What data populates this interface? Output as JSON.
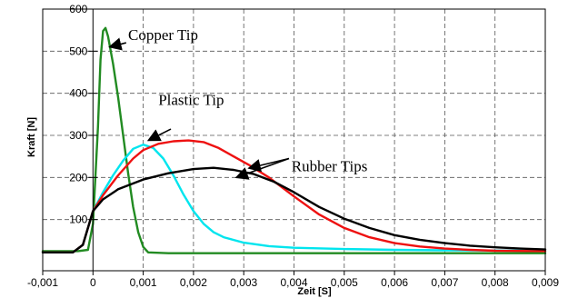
{
  "chart_data": {
    "type": "line",
    "title": "",
    "xlabel": "Zeit [S]",
    "ylabel": "Kraft [N]",
    "xlim": [
      -0.001,
      0.009
    ],
    "ylim": [
      0,
      600
    ],
    "y_axis_position": "x=0",
    "grid": true,
    "grid_style": "dashed",
    "legend": "none",
    "x_ticks": [
      "-0,001",
      "0",
      "0,001",
      "0,002",
      "0,003",
      "0,004",
      "0,005",
      "0,006",
      "0,007",
      "0,008",
      "0,009"
    ],
    "y_ticks": [
      "100",
      "200",
      "300",
      "400",
      "500",
      "600"
    ],
    "series": [
      {
        "color": "#228b22",
        "points": [
          [
            -0.001,
            25
          ],
          [
            -0.0003,
            25
          ],
          [
            -0.0001,
            28
          ],
          [
            0,
            90
          ],
          [
            0.0001,
            320
          ],
          [
            0.00015,
            480
          ],
          [
            0.0002,
            548
          ],
          [
            0.00025,
            555
          ],
          [
            0.0003,
            535
          ],
          [
            0.0004,
            470
          ],
          [
            0.0005,
            390
          ],
          [
            0.0006,
            300
          ],
          [
            0.0007,
            210
          ],
          [
            0.0008,
            130
          ],
          [
            0.0009,
            70
          ],
          [
            0.001,
            35
          ],
          [
            0.0011,
            22
          ],
          [
            0.0015,
            20
          ],
          [
            0.002,
            20
          ],
          [
            0.004,
            20
          ],
          [
            0.006,
            20
          ],
          [
            0.009,
            20
          ]
        ]
      },
      {
        "color": "#00e5ee",
        "points": [
          [
            -0.001,
            22
          ],
          [
            -0.0004,
            22
          ],
          [
            -0.0002,
            40
          ],
          [
            0,
            120
          ],
          [
            0.0002,
            165
          ],
          [
            0.0004,
            205
          ],
          [
            0.0006,
            240
          ],
          [
            0.0008,
            268
          ],
          [
            0.001,
            278
          ],
          [
            0.0012,
            270
          ],
          [
            0.0014,
            245
          ],
          [
            0.0016,
            205
          ],
          [
            0.0018,
            160
          ],
          [
            0.002,
            120
          ],
          [
            0.0022,
            90
          ],
          [
            0.0024,
            70
          ],
          [
            0.0026,
            58
          ],
          [
            0.003,
            45
          ],
          [
            0.0035,
            37
          ],
          [
            0.004,
            33
          ],
          [
            0.005,
            30
          ],
          [
            0.006,
            28
          ],
          [
            0.007,
            27
          ],
          [
            0.009,
            26
          ]
        ]
      },
      {
        "color": "#ee1111",
        "points": [
          [
            -0.001,
            22
          ],
          [
            -0.0004,
            22
          ],
          [
            -0.0002,
            40
          ],
          [
            0,
            120
          ],
          [
            0.0002,
            158
          ],
          [
            0.0005,
            205
          ],
          [
            0.0008,
            245
          ],
          [
            0.001,
            265
          ],
          [
            0.0013,
            280
          ],
          [
            0.0016,
            286
          ],
          [
            0.0019,
            288
          ],
          [
            0.0022,
            284
          ],
          [
            0.0025,
            270
          ],
          [
            0.0028,
            250
          ],
          [
            0.0031,
            230
          ],
          [
            0.0035,
            200
          ],
          [
            0.004,
            155
          ],
          [
            0.0045,
            112
          ],
          [
            0.005,
            80
          ],
          [
            0.0055,
            58
          ],
          [
            0.006,
            44
          ],
          [
            0.0065,
            36
          ],
          [
            0.007,
            31
          ],
          [
            0.0075,
            28
          ],
          [
            0.008,
            26
          ],
          [
            0.009,
            25
          ]
        ]
      },
      {
        "color": "#000000",
        "points": [
          [
            -0.001,
            22
          ],
          [
            -0.0004,
            22
          ],
          [
            -0.0002,
            40
          ],
          [
            0,
            120
          ],
          [
            0.0002,
            148
          ],
          [
            0.0005,
            172
          ],
          [
            0.001,
            195
          ],
          [
            0.0015,
            210
          ],
          [
            0.002,
            220
          ],
          [
            0.0024,
            223
          ],
          [
            0.0028,
            218
          ],
          [
            0.0032,
            208
          ],
          [
            0.0036,
            190
          ],
          [
            0.004,
            165
          ],
          [
            0.0045,
            130
          ],
          [
            0.005,
            102
          ],
          [
            0.0055,
            80
          ],
          [
            0.006,
            63
          ],
          [
            0.0065,
            52
          ],
          [
            0.007,
            44
          ],
          [
            0.0075,
            38
          ],
          [
            0.008,
            34
          ],
          [
            0.0085,
            31
          ],
          [
            0.009,
            29
          ]
        ]
      }
    ],
    "annotations": [
      {
        "text": "Copper Tip",
        "label_at": [
          0.0007,
          540
        ],
        "arrow_from": [
          0.00066,
          520
        ],
        "arrow_to": [
          0.00033,
          510
        ]
      },
      {
        "text": "Plastic Tip",
        "label_at": [
          0.0013,
          385
        ],
        "arrow_from": [
          0.00155,
          315
        ],
        "arrow_to": [
          0.0011,
          288
        ]
      },
      {
        "text": "Rubber Tips",
        "label_at": [
          0.00395,
          228
        ],
        "arrow_from": [
          0.0039,
          245
        ],
        "arrow_to": [
          0.0031,
          222
        ],
        "arrow_to_2": [
          0.00285,
          200
        ]
      }
    ]
  }
}
